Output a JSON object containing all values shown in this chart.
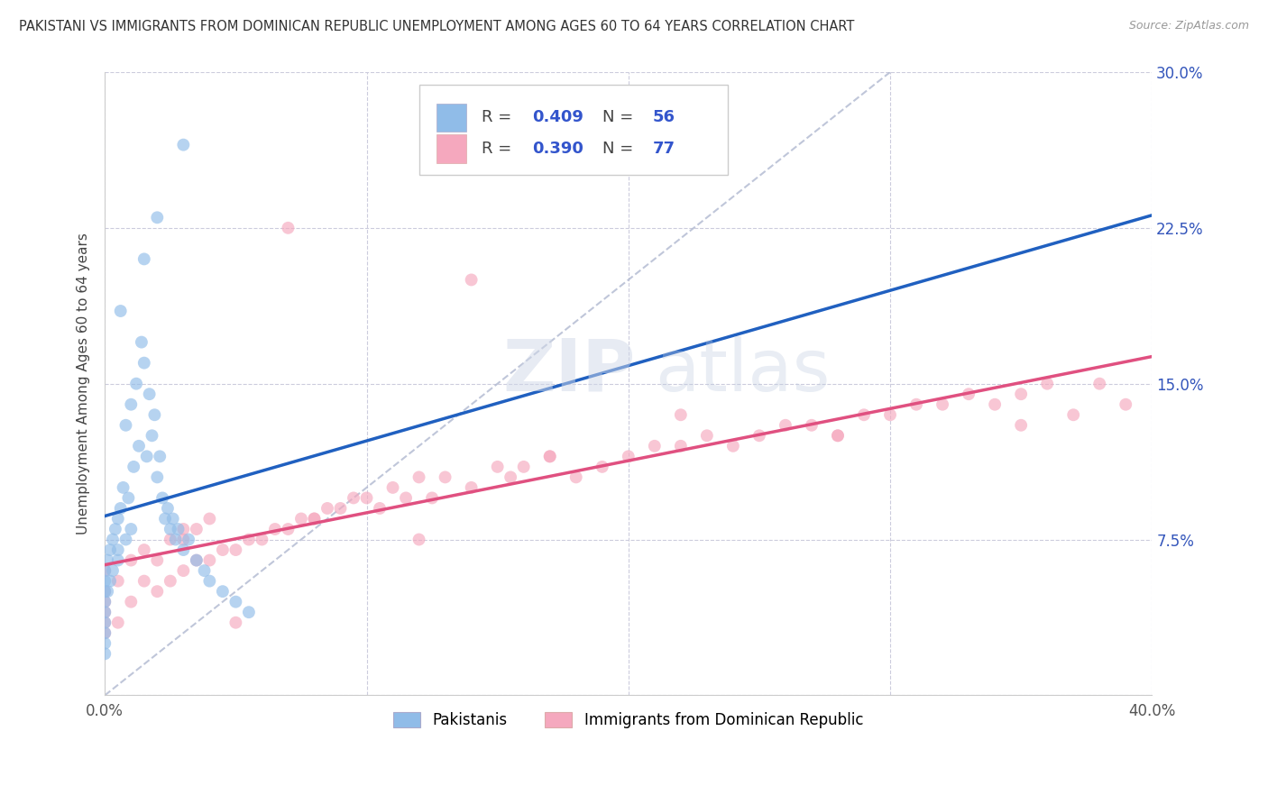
{
  "title": "PAKISTANI VS IMMIGRANTS FROM DOMINICAN REPUBLIC UNEMPLOYMENT AMONG AGES 60 TO 64 YEARS CORRELATION CHART",
  "source": "Source: ZipAtlas.com",
  "ylabel": "Unemployment Among Ages 60 to 64 years",
  "x_ticks": [
    0.0,
    10.0,
    20.0,
    30.0,
    40.0
  ],
  "y_ticks": [
    0.0,
    7.5,
    15.0,
    22.5,
    30.0
  ],
  "y_tick_labels": [
    "",
    "7.5%",
    "15.0%",
    "22.5%",
    "30.0%"
  ],
  "xlim": [
    0.0,
    40.0
  ],
  "ylim": [
    0.0,
    30.0
  ],
  "R_blue": 0.409,
  "N_blue": 56,
  "R_pink": 0.39,
  "N_pink": 77,
  "blue_color": "#90bce8",
  "pink_color": "#f5a8be",
  "blue_line_color": "#2060c0",
  "pink_line_color": "#e05080",
  "diag_color": "#b0b8d0",
  "legend_labels": [
    "Pakistanis",
    "Immigrants from Dominican Republic"
  ],
  "watermark_zip": "ZIP",
  "watermark_atlas": "atlas",
  "blue_scatter_x": [
    0.0,
    0.0,
    0.0,
    0.0,
    0.0,
    0.0,
    0.0,
    0.0,
    0.0,
    0.1,
    0.1,
    0.2,
    0.2,
    0.3,
    0.3,
    0.4,
    0.5,
    0.5,
    0.5,
    0.6,
    0.6,
    0.7,
    0.8,
    0.8,
    0.9,
    1.0,
    1.0,
    1.1,
    1.2,
    1.3,
    1.4,
    1.5,
    1.6,
    1.7,
    1.8,
    1.9,
    2.0,
    2.1,
    2.2,
    2.3,
    2.4,
    2.5,
    2.6,
    2.7,
    2.8,
    3.0,
    3.2,
    3.5,
    3.8,
    4.0,
    4.5,
    5.0,
    5.5,
    1.5,
    2.0,
    3.0
  ],
  "blue_scatter_y": [
    2.0,
    2.5,
    3.0,
    3.5,
    4.0,
    4.5,
    5.0,
    5.5,
    6.0,
    5.0,
    6.5,
    5.5,
    7.0,
    6.0,
    7.5,
    8.0,
    6.5,
    7.0,
    8.5,
    9.0,
    18.5,
    10.0,
    7.5,
    13.0,
    9.5,
    8.0,
    14.0,
    11.0,
    15.0,
    12.0,
    17.0,
    16.0,
    11.5,
    14.5,
    12.5,
    13.5,
    10.5,
    11.5,
    9.5,
    8.5,
    9.0,
    8.0,
    8.5,
    7.5,
    8.0,
    7.0,
    7.5,
    6.5,
    6.0,
    5.5,
    5.0,
    4.5,
    4.0,
    21.0,
    23.0,
    26.5
  ],
  "pink_scatter_x": [
    0.0,
    0.0,
    0.0,
    0.0,
    0.0,
    0.0,
    0.5,
    0.5,
    1.0,
    1.0,
    1.5,
    1.5,
    2.0,
    2.0,
    2.5,
    2.5,
    3.0,
    3.0,
    3.5,
    3.5,
    4.0,
    4.0,
    4.5,
    5.0,
    5.5,
    6.0,
    6.5,
    7.0,
    7.5,
    8.0,
    8.5,
    9.0,
    9.5,
    10.0,
    10.5,
    11.0,
    11.5,
    12.0,
    12.5,
    13.0,
    14.0,
    15.0,
    15.5,
    16.0,
    17.0,
    18.0,
    19.0,
    20.0,
    21.0,
    22.0,
    23.0,
    24.0,
    25.0,
    26.0,
    27.0,
    28.0,
    29.0,
    30.0,
    31.0,
    32.0,
    33.0,
    34.0,
    35.0,
    36.0,
    37.0,
    38.0,
    39.0,
    3.0,
    5.0,
    8.0,
    12.0,
    17.0,
    22.0,
    28.0,
    35.0,
    7.0,
    14.0
  ],
  "pink_scatter_y": [
    3.0,
    3.5,
    4.0,
    4.5,
    5.0,
    6.0,
    3.5,
    5.5,
    4.5,
    6.5,
    5.5,
    7.0,
    5.0,
    6.5,
    5.5,
    7.5,
    6.0,
    7.5,
    6.5,
    8.0,
    6.5,
    8.5,
    7.0,
    7.0,
    7.5,
    7.5,
    8.0,
    8.0,
    8.5,
    8.5,
    9.0,
    9.0,
    9.5,
    9.5,
    9.0,
    10.0,
    9.5,
    10.5,
    9.5,
    10.5,
    10.0,
    11.0,
    10.5,
    11.0,
    11.5,
    10.5,
    11.0,
    11.5,
    12.0,
    12.0,
    12.5,
    12.0,
    12.5,
    13.0,
    13.0,
    12.5,
    13.5,
    13.5,
    14.0,
    14.0,
    14.5,
    14.0,
    14.5,
    15.0,
    13.5,
    15.0,
    14.0,
    8.0,
    3.5,
    8.5,
    7.5,
    11.5,
    13.5,
    12.5,
    13.0,
    22.5,
    20.0
  ]
}
